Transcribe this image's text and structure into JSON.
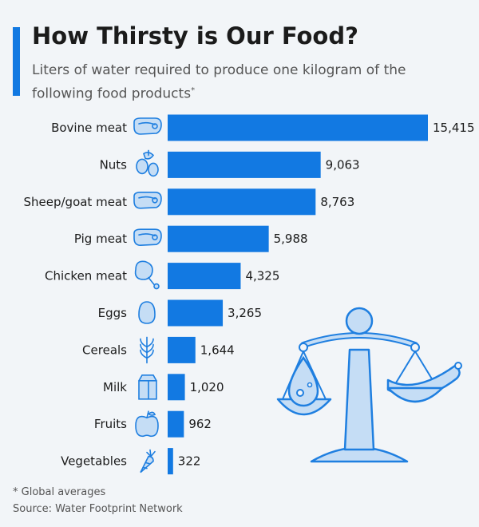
{
  "header": {
    "title": "How Thirsty is Our Food?",
    "subtitle": "Liters of water required to produce one kilogram of the following food products",
    "subtitle_mark": "*"
  },
  "footnote": {
    "note": "* Global averages",
    "source": "Source: Water Footprint Network"
  },
  "colors": {
    "accent": "#1279e2",
    "icon": "#1f7fe0",
    "icon_fill": "#c5ddf5",
    "background": "#f2f5f8"
  },
  "chart_data": {
    "type": "bar",
    "orientation": "horizontal",
    "title": "How Thirsty is Our Food?",
    "categories": [
      "Bovine meat",
      "Nuts",
      "Sheep/goat meat",
      "Pig meat",
      "Chicken meat",
      "Eggs",
      "Cereals",
      "Milk",
      "Fruits",
      "Vegetables"
    ],
    "values": [
      15415,
      9063,
      8763,
      5988,
      4325,
      3265,
      1644,
      1020,
      962,
      322
    ],
    "value_labels": [
      "15,415",
      "9,063",
      "8,763",
      "5,988",
      "4,325",
      "3,265",
      "1,644",
      "1,020",
      "962",
      "322"
    ],
    "icons": [
      "steak-icon",
      "nuts-icon",
      "steak-icon",
      "steak-icon",
      "drumstick-icon",
      "egg-icon",
      "wheat-icon",
      "milk-carton-icon",
      "apple-icon",
      "carrot-icon"
    ],
    "xlim": [
      0,
      15415
    ],
    "grid": false,
    "legend": "none"
  }
}
